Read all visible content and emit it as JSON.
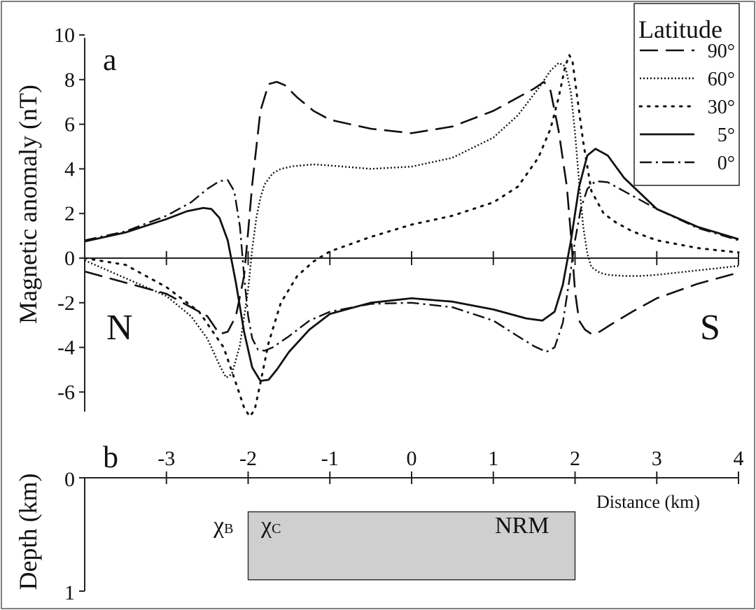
{
  "chart_data": [
    {
      "panel": "a",
      "type": "line",
      "ylabel": "Magnetic anomaly (nT)",
      "xlim": [
        -4,
        4
      ],
      "ylim": [
        -7.5,
        10
      ],
      "yticks": [
        "-6",
        "-4",
        "-2",
        "0",
        "2",
        "4",
        "6",
        "8",
        "10"
      ],
      "ytick_values": [
        -6,
        -4,
        -2,
        0,
        2,
        4,
        6,
        8,
        10
      ],
      "xtick_values": [
        -3,
        -2,
        -1,
        0,
        1,
        2,
        3,
        4
      ],
      "annotations": {
        "north": "N",
        "south": "S"
      },
      "legend": {
        "title": "Latitude",
        "position": "top-right"
      },
      "series": [
        {
          "name": "90°",
          "style": "long-dash",
          "x": [
            -4,
            -3,
            -2.5,
            -2.35,
            -2.25,
            -2.15,
            -2.05,
            -2,
            -1.95,
            -1.85,
            -1.75,
            -1.65,
            -1.55,
            -1.4,
            -1.2,
            -1,
            -0.5,
            0,
            0.5,
            1,
            1.5,
            1.62,
            1.7,
            1.8,
            1.9,
            1.95,
            2,
            2.05,
            2.12,
            2.2,
            2.3,
            2.45,
            2.7,
            3,
            3.5,
            4
          ],
          "y": [
            -0.6,
            -1.6,
            -2.6,
            -3.4,
            -3.3,
            -2.6,
            -0.8,
            1.2,
            3.3,
            6.6,
            7.8,
            7.9,
            7.75,
            7.2,
            6.6,
            6.2,
            5.8,
            5.6,
            5.9,
            6.6,
            7.6,
            7.9,
            7.5,
            5.7,
            3.2,
            1.0,
            -1.5,
            -2.8,
            -3.2,
            -3.4,
            -3.3,
            -2.95,
            -2.4,
            -1.8,
            -1.15,
            -0.65
          ]
        },
        {
          "name": "60°",
          "style": "fine-dot",
          "x": [
            -4,
            -3.5,
            -3,
            -2.7,
            -2.5,
            -2.35,
            -2.27,
            -2.2,
            -2.1,
            -2,
            -1.95,
            -1.9,
            -1.85,
            -1.8,
            -1.7,
            -1.6,
            -1.45,
            -1.2,
            -1,
            -0.5,
            0,
            0.5,
            1,
            1.3,
            1.55,
            1.7,
            1.8,
            1.88,
            1.95,
            2,
            2.05,
            2.1,
            2.15,
            2.2,
            2.3,
            2.4,
            2.6,
            2.8,
            3,
            3.5,
            4
          ],
          "y": [
            -0.1,
            -0.9,
            -1.7,
            -2.6,
            -3.6,
            -4.8,
            -5.35,
            -5.2,
            -3.9,
            -1.4,
            0.4,
            1.8,
            2.7,
            3.3,
            3.8,
            4.0,
            4.12,
            4.2,
            4.15,
            4.0,
            4.1,
            4.5,
            5.4,
            6.4,
            7.6,
            8.4,
            8.75,
            8.6,
            7.4,
            5.6,
            3.4,
            1.4,
            0.2,
            -0.4,
            -0.65,
            -0.75,
            -0.8,
            -0.8,
            -0.75,
            -0.55,
            -0.35
          ]
        },
        {
          "name": "30°",
          "style": "coarse-dot",
          "x": [
            -4,
            -3.5,
            -3,
            -2.6,
            -2.3,
            -2.15,
            -2.05,
            -1.98,
            -1.92,
            -1.85,
            -1.75,
            -1.6,
            -1.4,
            -1.2,
            -1,
            -0.5,
            0,
            0.5,
            1,
            1.3,
            1.55,
            1.7,
            1.8,
            1.88,
            1.93,
            1.97,
            2.02,
            2.1,
            2.2,
            2.35,
            2.5,
            2.7,
            3,
            3.5,
            4
          ],
          "y": [
            0,
            -0.3,
            -1.3,
            -2.4,
            -4.0,
            -5.6,
            -6.7,
            -7.1,
            -6.8,
            -5.6,
            -3.8,
            -2.0,
            -0.8,
            -0.15,
            0.3,
            0.95,
            1.5,
            1.9,
            2.5,
            3.2,
            4.5,
            5.8,
            7.2,
            8.6,
            9.1,
            8.8,
            7.4,
            5.2,
            3.0,
            2.0,
            1.6,
            1.2,
            0.8,
            0.45,
            0.25
          ]
        },
        {
          "name": "5°",
          "style": "solid",
          "x": [
            -4,
            -3.5,
            -3,
            -2.75,
            -2.55,
            -2.45,
            -2.35,
            -2.25,
            -2.15,
            -2.05,
            -1.95,
            -1.85,
            -1.75,
            -1.65,
            -1.5,
            -1.25,
            -1,
            -0.5,
            0,
            0.5,
            1,
            1.4,
            1.6,
            1.75,
            1.85,
            1.95,
            2.05,
            2.15,
            2.25,
            2.4,
            2.6,
            3,
            3.5,
            4
          ],
          "y": [
            0.75,
            1.15,
            1.75,
            2.1,
            2.25,
            2.2,
            1.8,
            0.8,
            -1.1,
            -3.3,
            -4.9,
            -5.5,
            -5.45,
            -5.0,
            -4.2,
            -3.2,
            -2.5,
            -2.0,
            -1.8,
            -1.95,
            -2.3,
            -2.7,
            -2.8,
            -2.4,
            -1.2,
            0.8,
            3.2,
            4.6,
            4.9,
            4.6,
            3.6,
            2.2,
            1.4,
            0.85
          ]
        },
        {
          "name": "0°",
          "style": "dash-dot",
          "x": [
            -4,
            -3.5,
            -3,
            -2.7,
            -2.5,
            -2.35,
            -2.25,
            -2.17,
            -2.1,
            -2.05,
            -2.0,
            -1.95,
            -1.88,
            -1.8,
            -1.7,
            -1.5,
            -1.25,
            -1,
            -0.5,
            0,
            0.5,
            1,
            1.3,
            1.5,
            1.65,
            1.75,
            1.85,
            1.93,
            2.0,
            2.07,
            2.15,
            2.25,
            2.4,
            2.6,
            3,
            3.5,
            4
          ],
          "y": [
            0.8,
            1.2,
            1.9,
            2.5,
            3.1,
            3.45,
            3.5,
            3.0,
            1.4,
            -0.8,
            -2.6,
            -3.6,
            -4.1,
            -4.15,
            -4.0,
            -3.5,
            -2.8,
            -2.4,
            -2.05,
            -2.0,
            -2.2,
            -2.8,
            -3.5,
            -3.95,
            -4.2,
            -4.0,
            -2.9,
            -1.0,
            0.8,
            2.2,
            3.1,
            3.45,
            3.4,
            3.0,
            2.2,
            1.35,
            0.8
          ]
        }
      ]
    },
    {
      "panel": "b",
      "type": "cross-section",
      "xlabel": "Distance (km)",
      "ylabel": "Depth (km)",
      "xlim": [
        -4,
        4
      ],
      "ylim": [
        0,
        1
      ],
      "xticks": [
        "-3",
        "-2",
        "-1",
        "0",
        "1",
        "2",
        "3",
        "4"
      ],
      "xtick_values": [
        -3,
        -2,
        -1,
        0,
        1,
        2,
        3,
        4
      ],
      "yticks": [
        "0",
        "1"
      ],
      "ytick_values": [
        0,
        1
      ],
      "source_body": {
        "x_range": [
          -2.0,
          2.0
        ],
        "depth_range": [
          0.3,
          0.9
        ],
        "fill_color": "#cfcfcf",
        "labels": {
          "boundary": "χ",
          "boundary_sub": "B",
          "contact": "χ",
          "contact_sub": "C",
          "magnetization": "NRM"
        }
      }
    }
  ]
}
